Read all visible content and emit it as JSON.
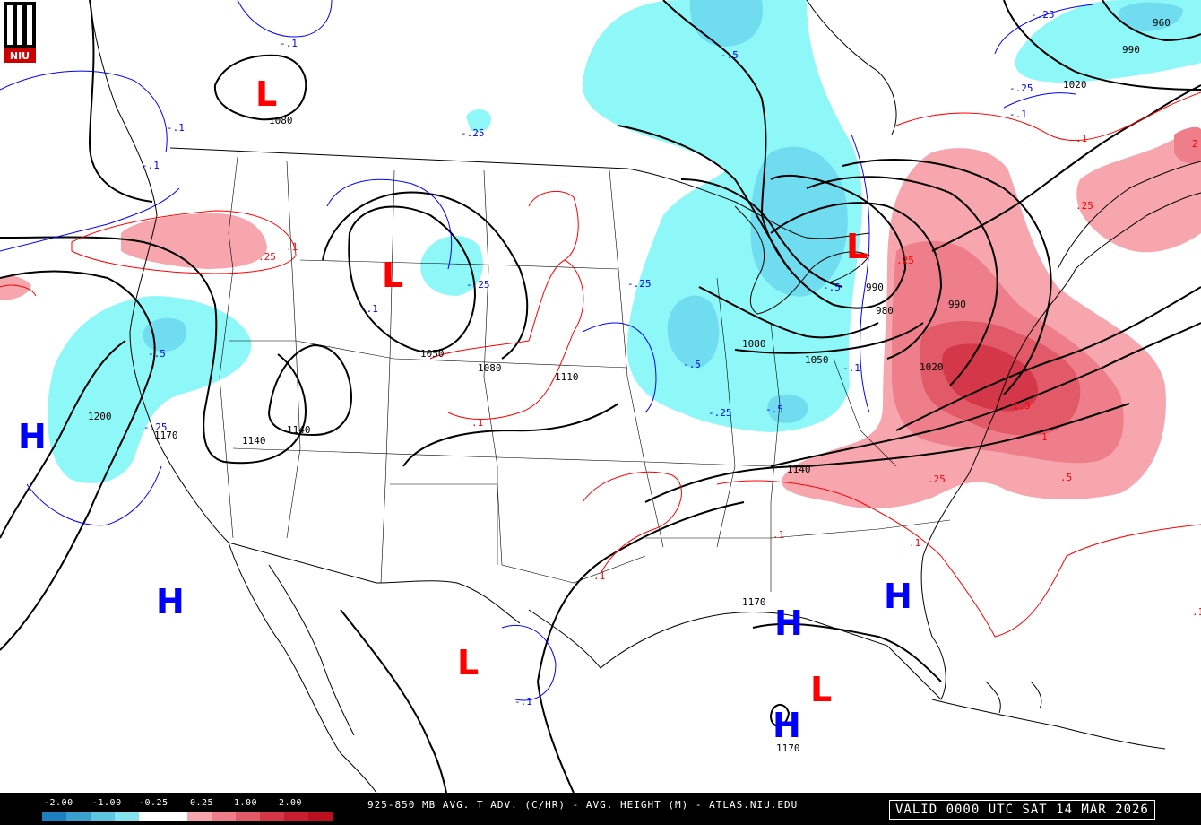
{
  "footer": {
    "scale_ticks": [
      "-2.00",
      "-1.00",
      "-0.25",
      "0.25",
      "1.00",
      "2.00"
    ],
    "scale_colors": [
      "#1c7fc0",
      "#3aa0d0",
      "#5ec6e0",
      "#86e2ec",
      "#ffffff",
      "#ffffff",
      "#f7a6ae",
      "#ee7f8a",
      "#e25a68",
      "#d43848",
      "#c81e30",
      "#bb0f20"
    ],
    "product": "925-850 MB AVG. T ADV. (C/HR) - AVG. HEIGHT (M) - ATLAS.NIU.EDU",
    "valid": "VALID 0000 UTC SAT 14 MAR 2026"
  },
  "logo": {
    "text": "NIU"
  },
  "pressure_centers": [
    {
      "label": "L",
      "color": "#ff0000"
    },
    {
      "label": "L",
      "color": "#ff0000"
    },
    {
      "label": "L",
      "color": "#ff0000"
    },
    {
      "label": "L",
      "color": "#ff0000"
    },
    {
      "label": "L",
      "color": "#ff0000"
    },
    {
      "label": "H",
      "color": "#0000ff"
    },
    {
      "label": "H",
      "color": "#0000ff"
    },
    {
      "label": "H",
      "color": "#0000ff"
    },
    {
      "label": "H",
      "color": "#0000ff"
    },
    {
      "label": "H",
      "color": "#0000ff"
    }
  ],
  "height_labels": [
    "1080",
    "1200",
    "1170",
    "1140",
    "1140",
    "1050",
    "1080",
    "1110",
    "1080",
    "1050",
    "990",
    "990",
    "1020",
    "990",
    "1020",
    "1140",
    "1170",
    "960",
    "980",
    "1170"
  ],
  "advection_labels": [
    ".1",
    ".25",
    ".1",
    ".1",
    ".1",
    ".1",
    ".25",
    ".25",
    ".5",
    "1",
    "1.5",
    ".1",
    "2",
    ".25",
    ".1",
    "-.1",
    "-.1",
    "-.25",
    "-.25",
    "-.5",
    "-.25",
    "-.25",
    "-.5",
    "-.5",
    "-.25",
    "-.1",
    "-.1",
    "-.5",
    "-.25",
    "-.1",
    "-.5",
    "-.1",
    "-.25",
    "-.1"
  ]
}
